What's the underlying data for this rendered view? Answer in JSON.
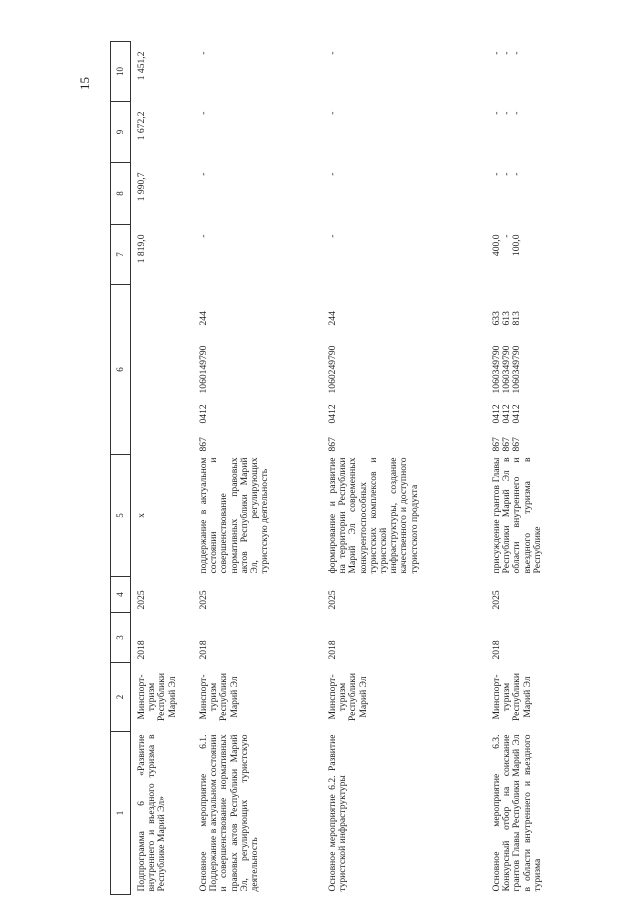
{
  "page_number": "15",
  "headers": [
    "1",
    "2",
    "3",
    "4",
    "5",
    "6",
    "7",
    "8",
    "9",
    "10"
  ],
  "rows": [
    {
      "name": "Подпрограмма 6 «Развитие внутреннего и въездного туризма в Республике Марий Эл»",
      "executor": [
        "Минспорт-",
        "туризм",
        "Республики",
        "Марий Эл"
      ],
      "start": "2018",
      "end": "2025",
      "result": "х",
      "codes": [],
      "values": [
        [
          "1 819,0"
        ],
        [
          "1 990,7"
        ],
        [
          "1 672,2"
        ],
        [
          "1 451,2"
        ]
      ]
    },
    {
      "name": "Основное мероприятие 6.1. Поддержание в актуальном состоянии и совершенствование нормативных правовых актов Республики Марий Эл, регулирующих туристскую деятельность",
      "executor": [
        "Минспорт-",
        "туризм",
        "Республики",
        "Марий Эл"
      ],
      "start": "2018",
      "end": "2025",
      "result": "поддержание в актуальном состоянии и совершенствование нормативных правовых актов Республики Марий Эл, регулирующих туристскую деятельность",
      "codes": [
        [
          "867",
          "0412",
          "1060149790",
          "244"
        ]
      ],
      "values": [
        [
          "-"
        ],
        [
          "-"
        ],
        [
          "-"
        ],
        [
          "-"
        ]
      ]
    },
    {
      "name": "Основное мероприятие 6.2. Развитие туристской инфраструктуры",
      "executor": [
        "Минспорт-",
        "туризм",
        "Республики",
        "Марий Эл"
      ],
      "start": "2018",
      "end": "2025",
      "result": "формирование и развитие на территории Республики Марий Эл современных конкурентоспособных туристских комплексов и туристской инфраструктуры, создание качественного и доступного туристского продукта",
      "codes": [
        [
          "867",
          "0412",
          "1060249790",
          "244"
        ]
      ],
      "values": [
        [
          "-"
        ],
        [
          "-"
        ],
        [
          "-"
        ],
        [
          "-"
        ]
      ]
    },
    {
      "name": "Основное мероприятие 6.3. Конкурсный отбор на соискание грантов Главы Республики Марий Эл в области внутреннего и въездного туризма",
      "executor": [
        "Минспорт-",
        "туризм",
        "Республики",
        "Марий Эл"
      ],
      "start": "2018",
      "end": "2025",
      "result": "присуждение грантов Главы Республики Марий Эл в области внутреннего и въездного туризма в Республике",
      "codes": [
        [
          "867",
          "0412",
          "1060349790",
          "633"
        ],
        [
          "867",
          "0412",
          "1060349790",
          "613"
        ],
        [
          "867",
          "0412",
          "1060349790",
          "813"
        ]
      ],
      "values": [
        [
          "400,0",
          "-",
          "100,0"
        ],
        [
          "-",
          "-",
          "-"
        ],
        [
          "-",
          "-",
          "-"
        ],
        [
          "-",
          "-",
          "-"
        ]
      ]
    }
  ]
}
